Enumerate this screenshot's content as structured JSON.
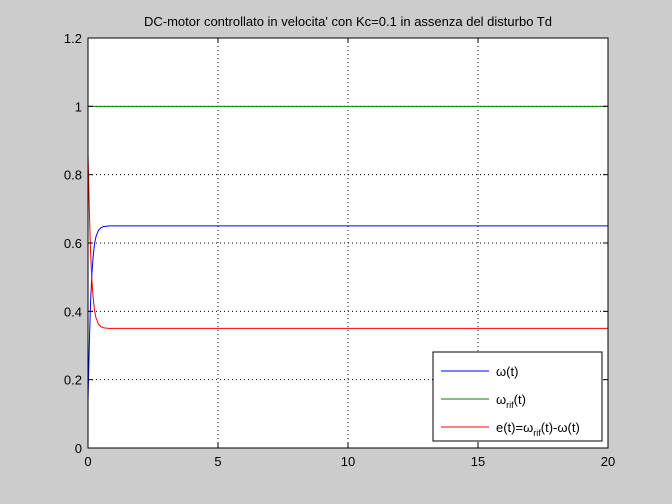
{
  "chart_data": {
    "type": "line",
    "title": "DC-motor controllato in velocita' con Kc=0.1 in assenza del disturbo Td",
    "xlabel": "",
    "ylabel": "",
    "xlim": [
      0,
      20
    ],
    "ylim": [
      0,
      1.2
    ],
    "xticks": [
      0,
      5,
      10,
      15,
      20
    ],
    "yticks": [
      0,
      0.2,
      0.4,
      0.6,
      0.8,
      1,
      1.2
    ],
    "xtick_labels": [
      "0",
      "5",
      "10",
      "15",
      "20"
    ],
    "ytick_labels": [
      "0",
      "0.2",
      "0.4",
      "0.6",
      "0.8",
      "1",
      "1.2"
    ],
    "grid": true,
    "legend_position": "bottom-right",
    "series": [
      {
        "name": "ω(t)",
        "legend_parts": [
          "ω",
          "",
          "(t)"
        ],
        "color": "#0000ff",
        "x": [
          0,
          0.02,
          0.05,
          0.08,
          0.1,
          0.15,
          0.2,
          0.25,
          0.3,
          0.4,
          0.5,
          0.6,
          0.7,
          0.8,
          1.0,
          1.5,
          2,
          5,
          10,
          15,
          20
        ],
        "y": [
          0.14,
          0.2,
          0.3,
          0.38,
          0.43,
          0.51,
          0.562,
          0.596,
          0.617,
          0.637,
          0.645,
          0.648,
          0.649,
          0.65,
          0.65,
          0.65,
          0.65,
          0.65,
          0.65,
          0.65,
          0.65
        ]
      },
      {
        "name": "ωrif(t)",
        "legend_parts": [
          "ω",
          "rif",
          "(t)"
        ],
        "color": "#008000",
        "x": [
          0,
          20
        ],
        "y": [
          1,
          1
        ]
      },
      {
        "name": "e(t)=ωrif(t)-ω(t)",
        "legend_parts": [
          "e(t)=ω",
          "rif",
          "(t)-ω(t)"
        ],
        "color": "#ff0000",
        "x": [
          0,
          0.02,
          0.05,
          0.08,
          0.1,
          0.15,
          0.2,
          0.25,
          0.3,
          0.4,
          0.5,
          0.6,
          0.7,
          0.8,
          1.0,
          1.5,
          2,
          5,
          10,
          15,
          20
        ],
        "y": [
          0.86,
          0.8,
          0.7,
          0.62,
          0.57,
          0.49,
          0.438,
          0.404,
          0.383,
          0.363,
          0.355,
          0.352,
          0.351,
          0.35,
          0.35,
          0.35,
          0.35,
          0.35,
          0.35,
          0.35,
          0.35
        ]
      }
    ]
  }
}
